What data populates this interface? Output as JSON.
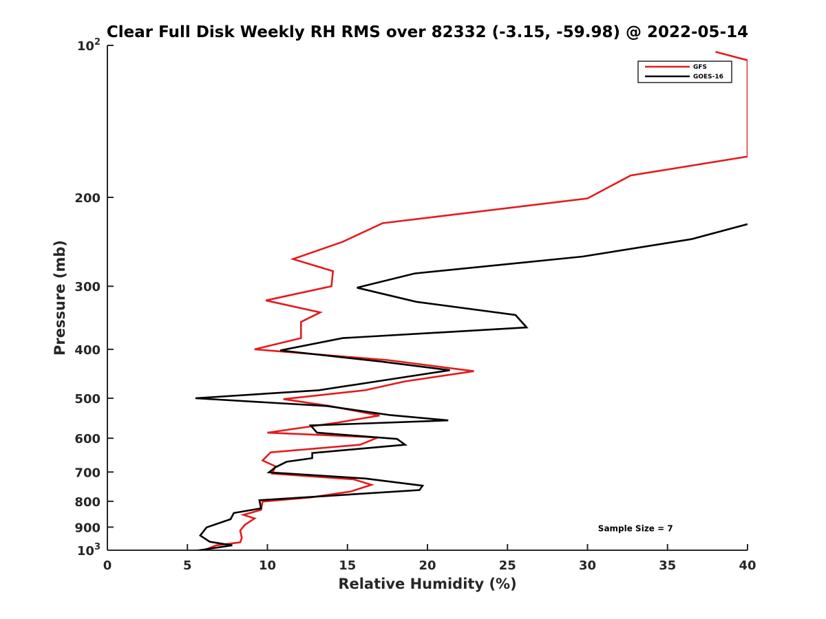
{
  "chart_data": {
    "type": "line",
    "title": "Clear Full Disk Weekly RH RMS over 82332 (-3.15, -59.98) @ 2022-05-14",
    "xlabel": "Relative Humidity (%)",
    "ylabel": "Pressure (mb)",
    "xlim": [
      0,
      40
    ],
    "ylim": [
      100,
      1000
    ],
    "y_scale": "log",
    "y_reversed": true,
    "grid": false,
    "legend_position": "top-right",
    "x_ticks": [
      {
        "value": 0,
        "label": "0"
      },
      {
        "value": 5,
        "label": "5"
      },
      {
        "value": 10,
        "label": "10"
      },
      {
        "value": 15,
        "label": "15"
      },
      {
        "value": 20,
        "label": "20"
      },
      {
        "value": 25,
        "label": "25"
      },
      {
        "value": 30,
        "label": "30"
      },
      {
        "value": 35,
        "label": "35"
      },
      {
        "value": 40,
        "label": "40"
      }
    ],
    "y_ticks": [
      {
        "value": 100,
        "label": "10",
        "sup": "2"
      },
      {
        "value": 200,
        "label": "200",
        "sup": ""
      },
      {
        "value": 300,
        "label": "300",
        "sup": ""
      },
      {
        "value": 400,
        "label": "400",
        "sup": ""
      },
      {
        "value": 500,
        "label": "500",
        "sup": ""
      },
      {
        "value": 600,
        "label": "600",
        "sup": ""
      },
      {
        "value": 700,
        "label": "700",
        "sup": ""
      },
      {
        "value": 800,
        "label": "800",
        "sup": ""
      },
      {
        "value": 900,
        "label": "900",
        "sup": ""
      },
      {
        "value": 1000,
        "label": "10",
        "sup": "3"
      }
    ],
    "series": [
      {
        "name": "GFS",
        "color": "#e41a1c",
        "points": [
          [
            38.0,
            103
          ],
          [
            40.0,
            107
          ],
          [
            40.0,
            166
          ],
          [
            32.7,
            181
          ],
          [
            30.0,
            201
          ],
          [
            17.2,
            225
          ],
          [
            14.7,
            245
          ],
          [
            11.6,
            265
          ],
          [
            14.1,
            280
          ],
          [
            14.0,
            300
          ],
          [
            9.9,
            320
          ],
          [
            13.3,
            338
          ],
          [
            12.1,
            353
          ],
          [
            12.1,
            380
          ],
          [
            9.2,
            400
          ],
          [
            17.5,
            420
          ],
          [
            22.9,
            442
          ],
          [
            18.6,
            463
          ],
          [
            16.1,
            482
          ],
          [
            11.0,
            502
          ],
          [
            13.9,
            518
          ],
          [
            17.0,
            541
          ],
          [
            14.5,
            558
          ],
          [
            10.0,
            585
          ],
          [
            16.9,
            598
          ],
          [
            15.8,
            618
          ],
          [
            10.2,
            640
          ],
          [
            9.7,
            664
          ],
          [
            10.5,
            682
          ],
          [
            10.3,
            705
          ],
          [
            15.4,
            724
          ],
          [
            16.5,
            742
          ],
          [
            15.2,
            765
          ],
          [
            12.7,
            786
          ],
          [
            9.7,
            801
          ],
          [
            9.6,
            832
          ],
          [
            8.5,
            851
          ],
          [
            9.2,
            865
          ],
          [
            8.6,
            890
          ],
          [
            8.3,
            914
          ],
          [
            8.4,
            945
          ],
          [
            8.3,
            965
          ],
          [
            6.8,
            978
          ],
          [
            6.2,
            995
          ]
        ]
      },
      {
        "name": "GOES-16",
        "color": "#000000",
        "points": [
          [
            40.0,
            226
          ],
          [
            36.5,
            242
          ],
          [
            29.7,
            262
          ],
          [
            19.2,
            283
          ],
          [
            15.6,
            302
          ],
          [
            19.3,
            322
          ],
          [
            25.5,
            342
          ],
          [
            26.2,
            362
          ],
          [
            14.7,
            380
          ],
          [
            10.8,
            402
          ],
          [
            17.1,
            423
          ],
          [
            21.4,
            440
          ],
          [
            17.4,
            460
          ],
          [
            13.2,
            482
          ],
          [
            5.5,
            500
          ],
          [
            13.7,
            518
          ],
          [
            17.7,
            540
          ],
          [
            21.3,
            553
          ],
          [
            12.7,
            566
          ],
          [
            13.1,
            585
          ],
          [
            18.1,
            602
          ],
          [
            18.6,
            618
          ],
          [
            12.8,
            642
          ],
          [
            12.8,
            657
          ],
          [
            11.2,
            668
          ],
          [
            10.5,
            685
          ],
          [
            10.1,
            701
          ],
          [
            16.1,
            721
          ],
          [
            19.7,
            745
          ],
          [
            19.5,
            760
          ],
          [
            9.5,
            796
          ],
          [
            9.6,
            826
          ],
          [
            7.9,
            844
          ],
          [
            7.7,
            868
          ],
          [
            6.2,
            901
          ],
          [
            5.8,
            935
          ],
          [
            6.4,
            962
          ],
          [
            7.8,
            978
          ],
          [
            5.3,
            1005
          ]
        ]
      }
    ],
    "annotations": [
      {
        "text": "Sample Size = 7",
        "x": 33.0,
        "y": 900
      }
    ]
  }
}
